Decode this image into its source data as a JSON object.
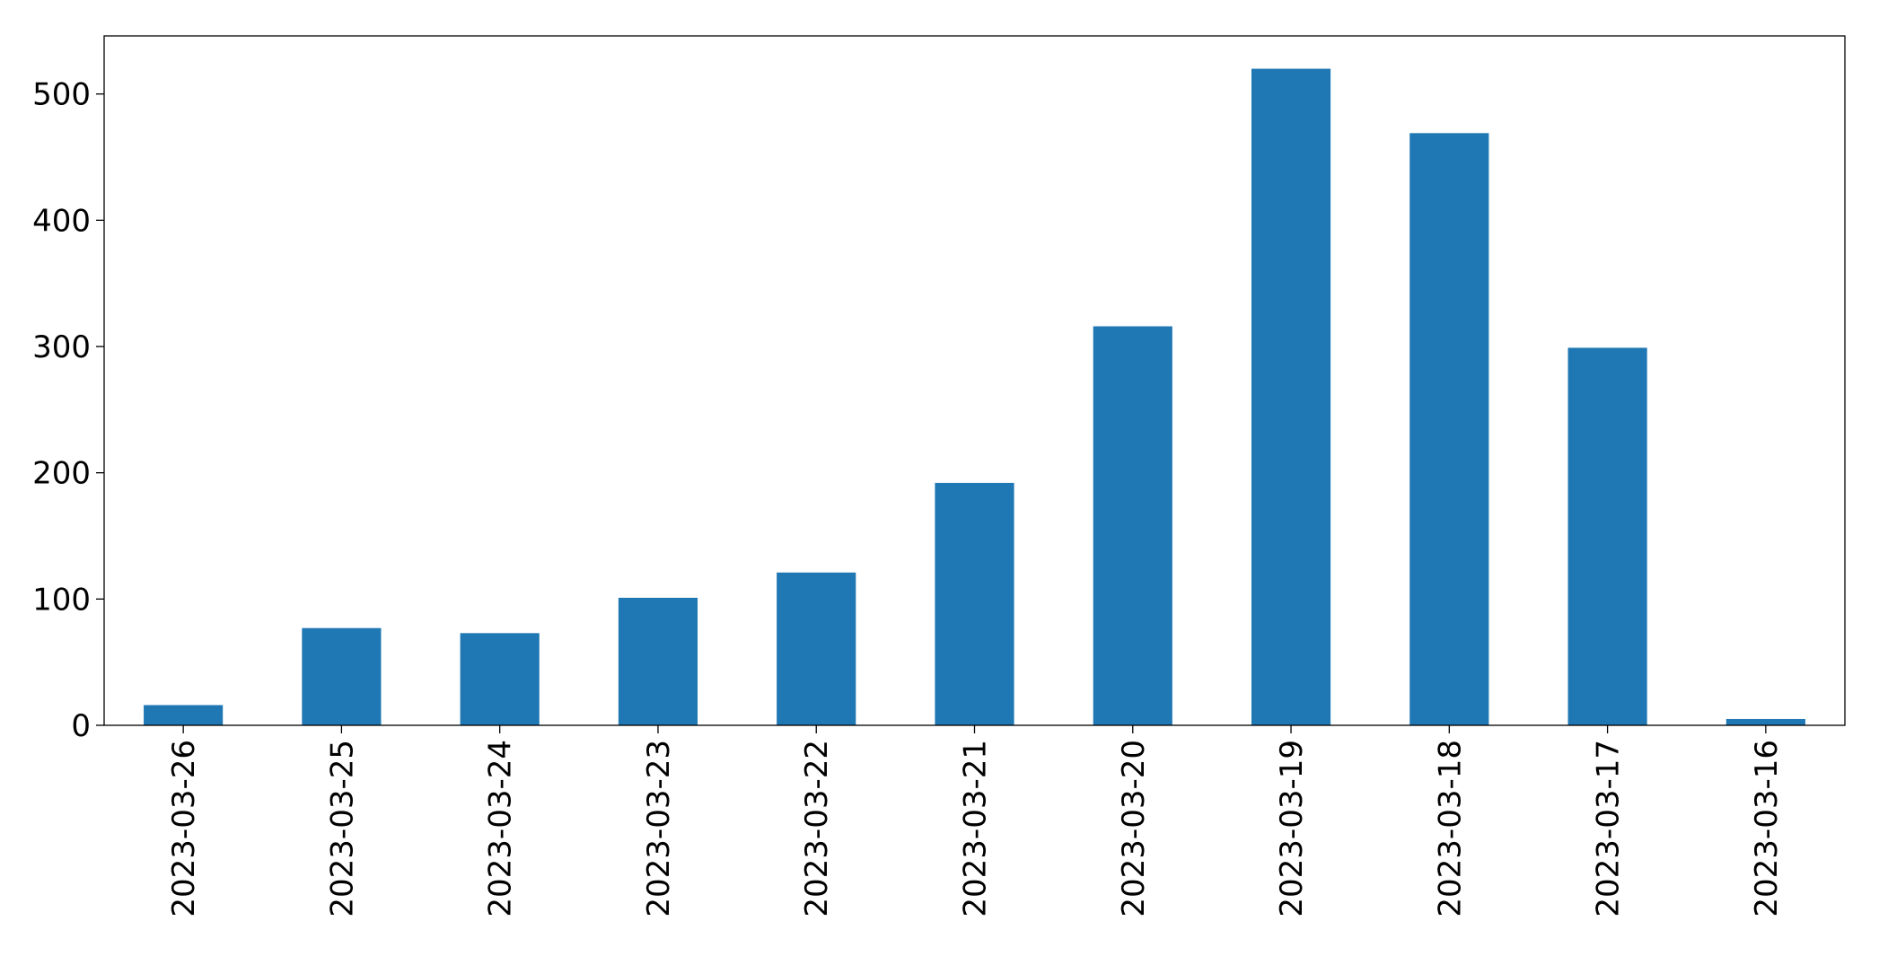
{
  "chart_data": {
    "type": "bar",
    "title": "",
    "xlabel": "",
    "ylabel": "",
    "categories": [
      "2023-03-26",
      "2023-03-25",
      "2023-03-24",
      "2023-03-23",
      "2023-03-22",
      "2023-03-21",
      "2023-03-20",
      "2023-03-19",
      "2023-03-18",
      "2023-03-17",
      "2023-03-16"
    ],
    "values": [
      16,
      77,
      73,
      101,
      121,
      192,
      316,
      520,
      469,
      299,
      5
    ],
    "ylim": [
      0,
      546
    ],
    "yticks": [
      0,
      100,
      200,
      300,
      400,
      500
    ],
    "grid": false,
    "legend": "none",
    "bar_color": "#1f77b4"
  }
}
